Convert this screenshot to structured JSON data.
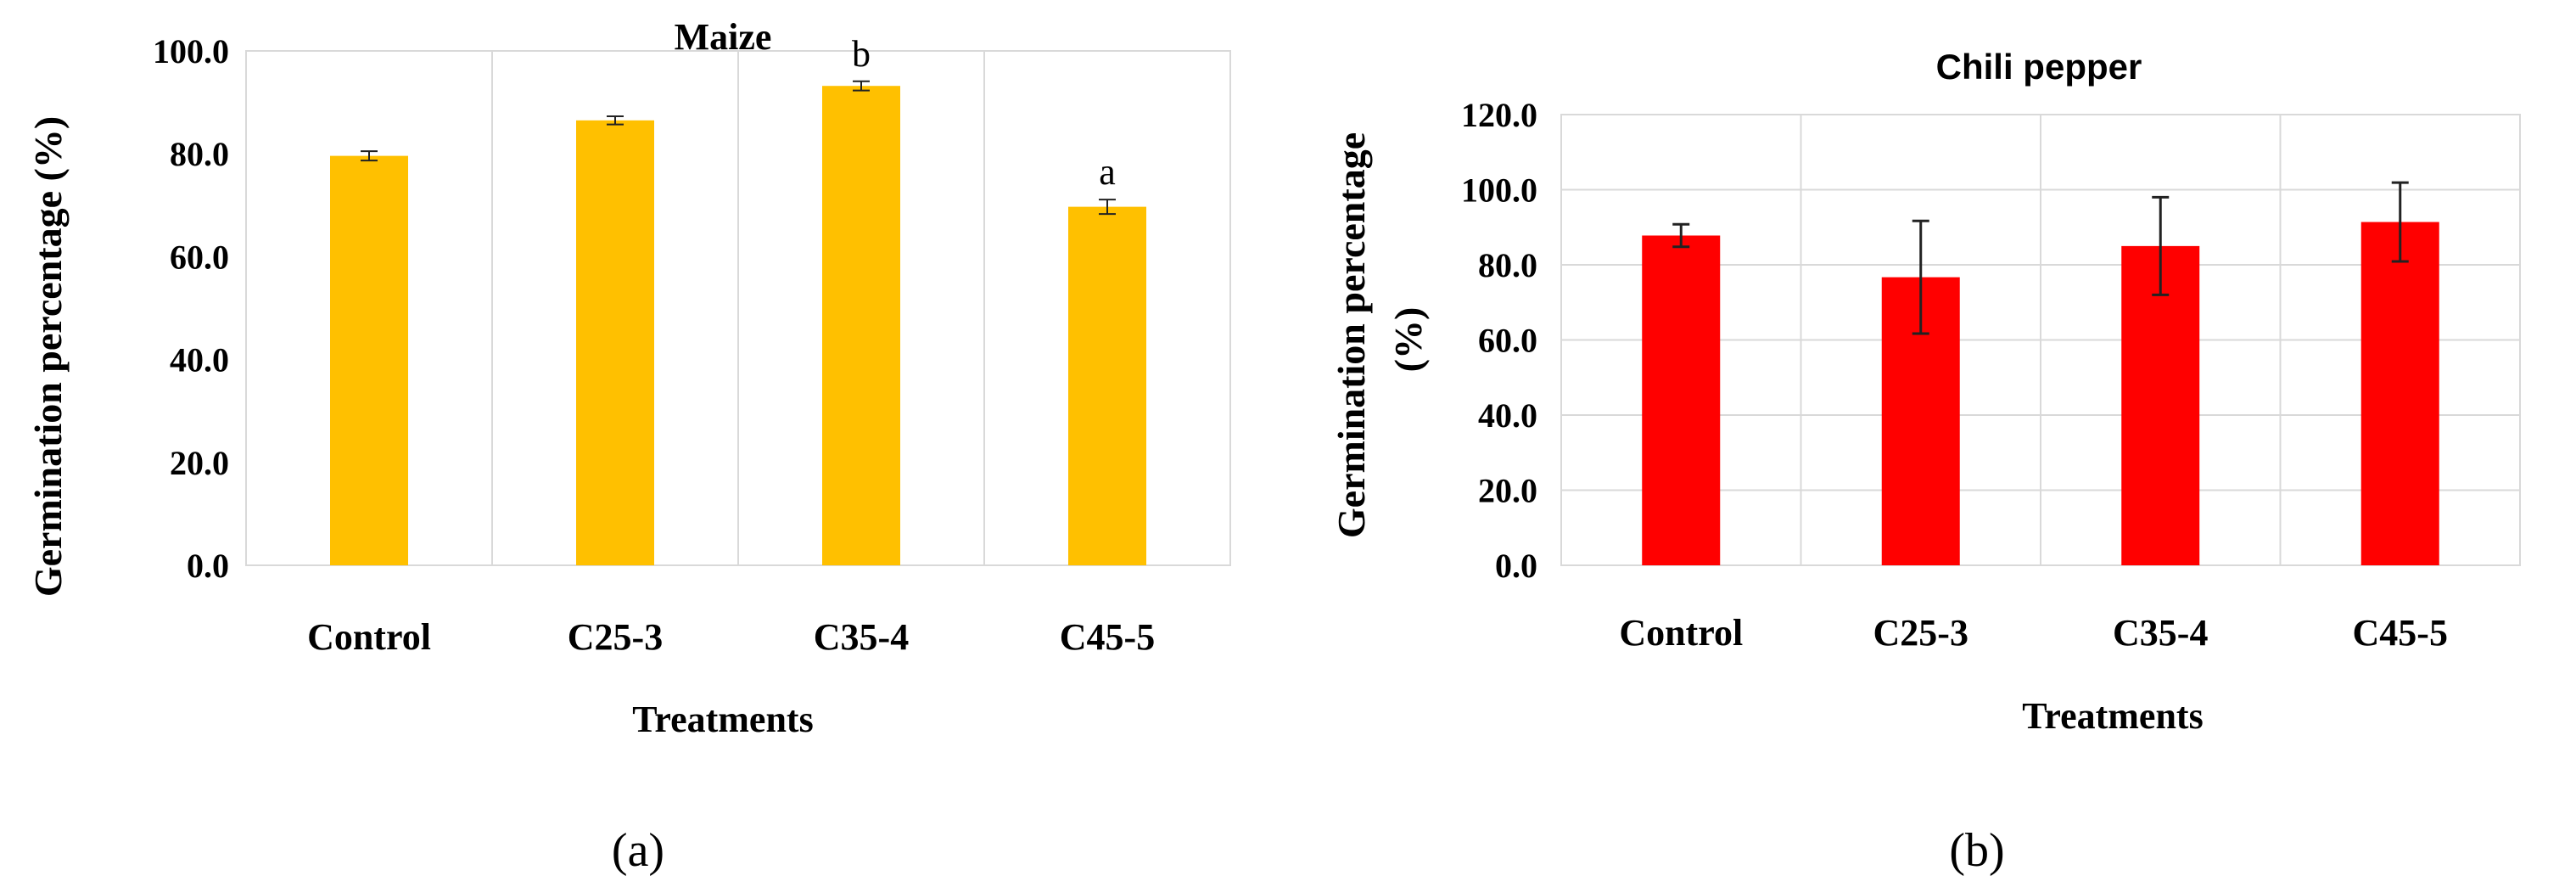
{
  "chart_data": [
    {
      "type": "bar",
      "panel_label": "(a)",
      "title": "Maize",
      "xlabel": "Treatments",
      "ylabel": "Germination percentage (%)",
      "categories": [
        "Control",
        "C25-3",
        "C35-4",
        "C45-5"
      ],
      "values": [
        79.6,
        86.5,
        93.2,
        69.7
      ],
      "errors": [
        0.9,
        0.8,
        0.9,
        1.4
      ],
      "annotations": [
        "",
        "",
        "b",
        "a"
      ],
      "ylim": [
        0,
        100
      ],
      "yticks": [
        "0.0",
        "20.0",
        "40.0",
        "60.0",
        "80.0",
        "100.0"
      ],
      "bar_color": "#ffc000",
      "grid": "vertical"
    },
    {
      "type": "bar",
      "panel_label": "(b)",
      "title": "Chili pepper",
      "xlabel": "Treatments",
      "ylabel_line1": "Germination percentage",
      "ylabel_line2": "(%)",
      "categories": [
        "Control",
        "C25-3",
        "C35-4",
        "C45-5"
      ],
      "values": [
        87.8,
        76.7,
        85.0,
        91.4
      ],
      "errors": [
        3.0,
        15.0,
        13.0,
        10.5
      ],
      "ylim": [
        0,
        120
      ],
      "yticks": [
        "0.0",
        "20.0",
        "40.0",
        "60.0",
        "80.0",
        "100.0",
        "120.0"
      ],
      "bar_color": "#ff0000",
      "grid": "both"
    }
  ]
}
